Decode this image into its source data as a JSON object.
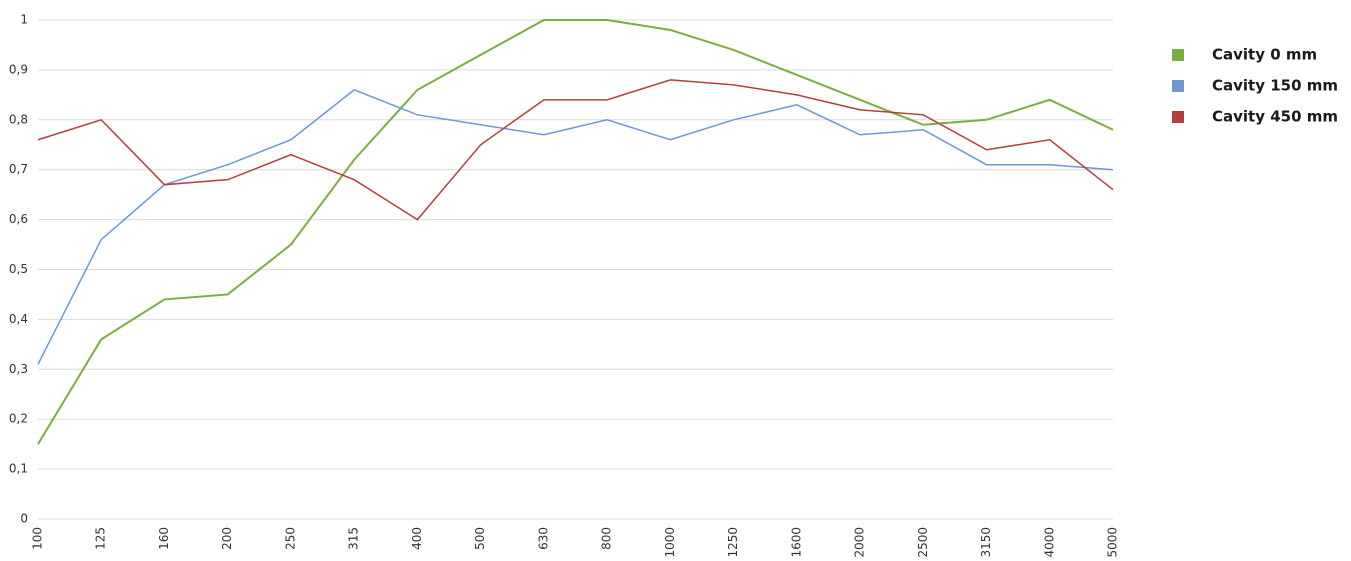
{
  "chart_data": {
    "type": "line",
    "categories": [
      "100",
      "125",
      "160",
      "200",
      "250",
      "315",
      "400",
      "500",
      "630",
      "800",
      "1000",
      "1250",
      "1600",
      "2000",
      "2500",
      "3150",
      "4000",
      "5000"
    ],
    "series": [
      {
        "name": "Cavity 0 mm",
        "color": "#7aaf3f",
        "values": [
          0.15,
          0.36,
          0.44,
          0.45,
          0.55,
          0.72,
          0.86,
          0.93,
          1.0,
          1.0,
          0.98,
          0.94,
          0.89,
          0.84,
          0.79,
          0.8,
          0.84,
          0.78
        ]
      },
      {
        "name": "Cavity 150 mm",
        "color": "#6b98d2",
        "values": [
          0.31,
          0.56,
          0.67,
          0.71,
          0.76,
          0.86,
          0.81,
          0.79,
          0.77,
          0.8,
          0.76,
          0.8,
          0.83,
          0.77,
          0.78,
          0.71,
          0.71,
          0.7
        ]
      },
      {
        "name": "Cavity 450 mm",
        "color": "#b33f3c",
        "values": [
          0.76,
          0.8,
          0.67,
          0.68,
          0.73,
          0.68,
          0.6,
          0.75,
          0.84,
          0.84,
          0.88,
          0.87,
          0.85,
          0.82,
          0.81,
          0.74,
          0.76,
          0.66
        ]
      }
    ],
    "ylim": [
      0,
      1
    ],
    "yticks": [
      0,
      {
        "value": 0.1,
        "label": "0,1"
      },
      {
        "value": 0.2,
        "label": "0,2"
      },
      {
        "value": 0.3,
        "label": "0,3"
      },
      {
        "value": 0.4,
        "label": "0,4"
      },
      {
        "value": 0.5,
        "label": "0,5"
      },
      {
        "value": 0.6,
        "label": "0,6"
      },
      {
        "value": 0.7,
        "label": "0,7"
      },
      {
        "value": 0.8,
        "label": "0,8"
      },
      {
        "value": 0.9,
        "label": "0,9"
      },
      1
    ],
    "grid": true
  }
}
